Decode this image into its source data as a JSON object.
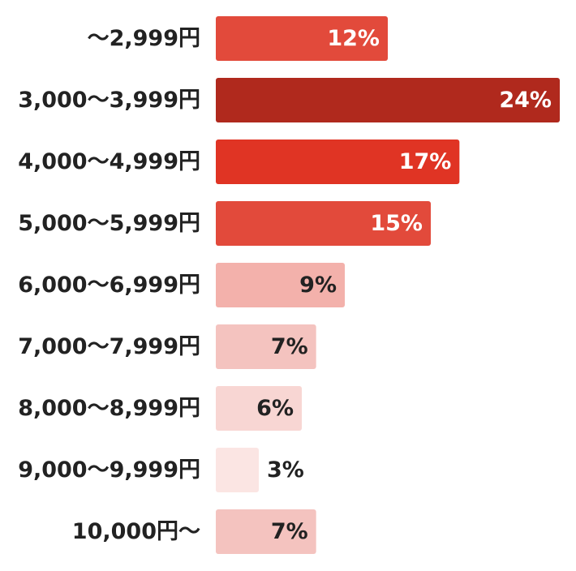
{
  "chart_data": {
    "type": "bar",
    "orientation": "horizontal",
    "categories": [
      "～2,999円",
      "3,000～3,999円",
      "4,000～4,999円",
      "5,000～5,999円",
      "6,000～6,999円",
      "7,000～7,999円",
      "8,000～8,999円",
      "9,000～9,999円",
      "10,000円～"
    ],
    "values": [
      12,
      24,
      17,
      15,
      9,
      7,
      6,
      3,
      7
    ],
    "value_labels": [
      "12%",
      "24%",
      "17%",
      "15%",
      "9%",
      "7%",
      "6%",
      "3%",
      "7%"
    ],
    "unit": "%",
    "bar_colors": [
      "#e24a3b",
      "#b0291d",
      "#e03424",
      "#e24a3b",
      "#f3b1ab",
      "#f4c3bf",
      "#f8d6d3",
      "#fbe5e3",
      "#f4c3bf"
    ],
    "label_colors": [
      "#ffffff",
      "#ffffff",
      "#ffffff",
      "#ffffff",
      "#222222",
      "#222222",
      "#222222",
      "#222222",
      "#222222"
    ],
    "title": "",
    "xlabel": "",
    "ylabel": "",
    "xlim": [
      0,
      24
    ],
    "grid": false,
    "legend": "none"
  }
}
